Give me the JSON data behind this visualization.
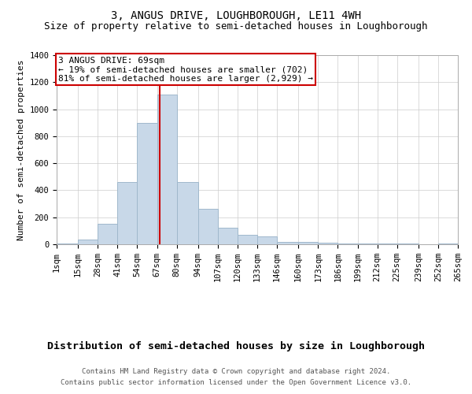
{
  "title": "3, ANGUS DRIVE, LOUGHBOROUGH, LE11 4WH",
  "subtitle": "Size of property relative to semi-detached houses in Loughborough",
  "xlabel": "Distribution of semi-detached houses by size in Loughborough",
  "ylabel": "Number of semi-detached properties",
  "footnote1": "Contains HM Land Registry data © Crown copyright and database right 2024.",
  "footnote2": "Contains public sector information licensed under the Open Government Licence v3.0.",
  "bin_edges": [
    1,
    15,
    28,
    41,
    54,
    67,
    80,
    94,
    107,
    120,
    133,
    146,
    160,
    173,
    186,
    199,
    212,
    225,
    239,
    252,
    265
  ],
  "bin_labels": [
    "1sqm",
    "15sqm",
    "28sqm",
    "41sqm",
    "54sqm",
    "67sqm",
    "80sqm",
    "94sqm",
    "107sqm",
    "120sqm",
    "133sqm",
    "146sqm",
    "160sqm",
    "173sqm",
    "186sqm",
    "199sqm",
    "212sqm",
    "225sqm",
    "239sqm",
    "252sqm",
    "265sqm"
  ],
  "counts": [
    5,
    35,
    150,
    460,
    900,
    1110,
    460,
    260,
    120,
    70,
    60,
    20,
    15,
    10,
    5,
    5,
    3,
    3,
    2,
    5
  ],
  "bar_color": "#c8d8e8",
  "bar_edge_color": "#a0b8cc",
  "grid_color": "#cccccc",
  "property_sqm": 69,
  "property_line_color": "#cc0000",
  "annotation_text": "3 ANGUS DRIVE: 69sqm\n← 19% of semi-detached houses are smaller (702)\n81% of semi-detached houses are larger (2,929) →",
  "annotation_box_color": "#cc0000",
  "ylim": [
    0,
    1400
  ],
  "yticks": [
    0,
    200,
    400,
    600,
    800,
    1000,
    1200,
    1400
  ],
  "title_fontsize": 10,
  "subtitle_fontsize": 9,
  "xlabel_fontsize": 9.5,
  "ylabel_fontsize": 8,
  "tick_fontsize": 7.5,
  "annotation_fontsize": 8,
  "footnote_fontsize": 6.5
}
